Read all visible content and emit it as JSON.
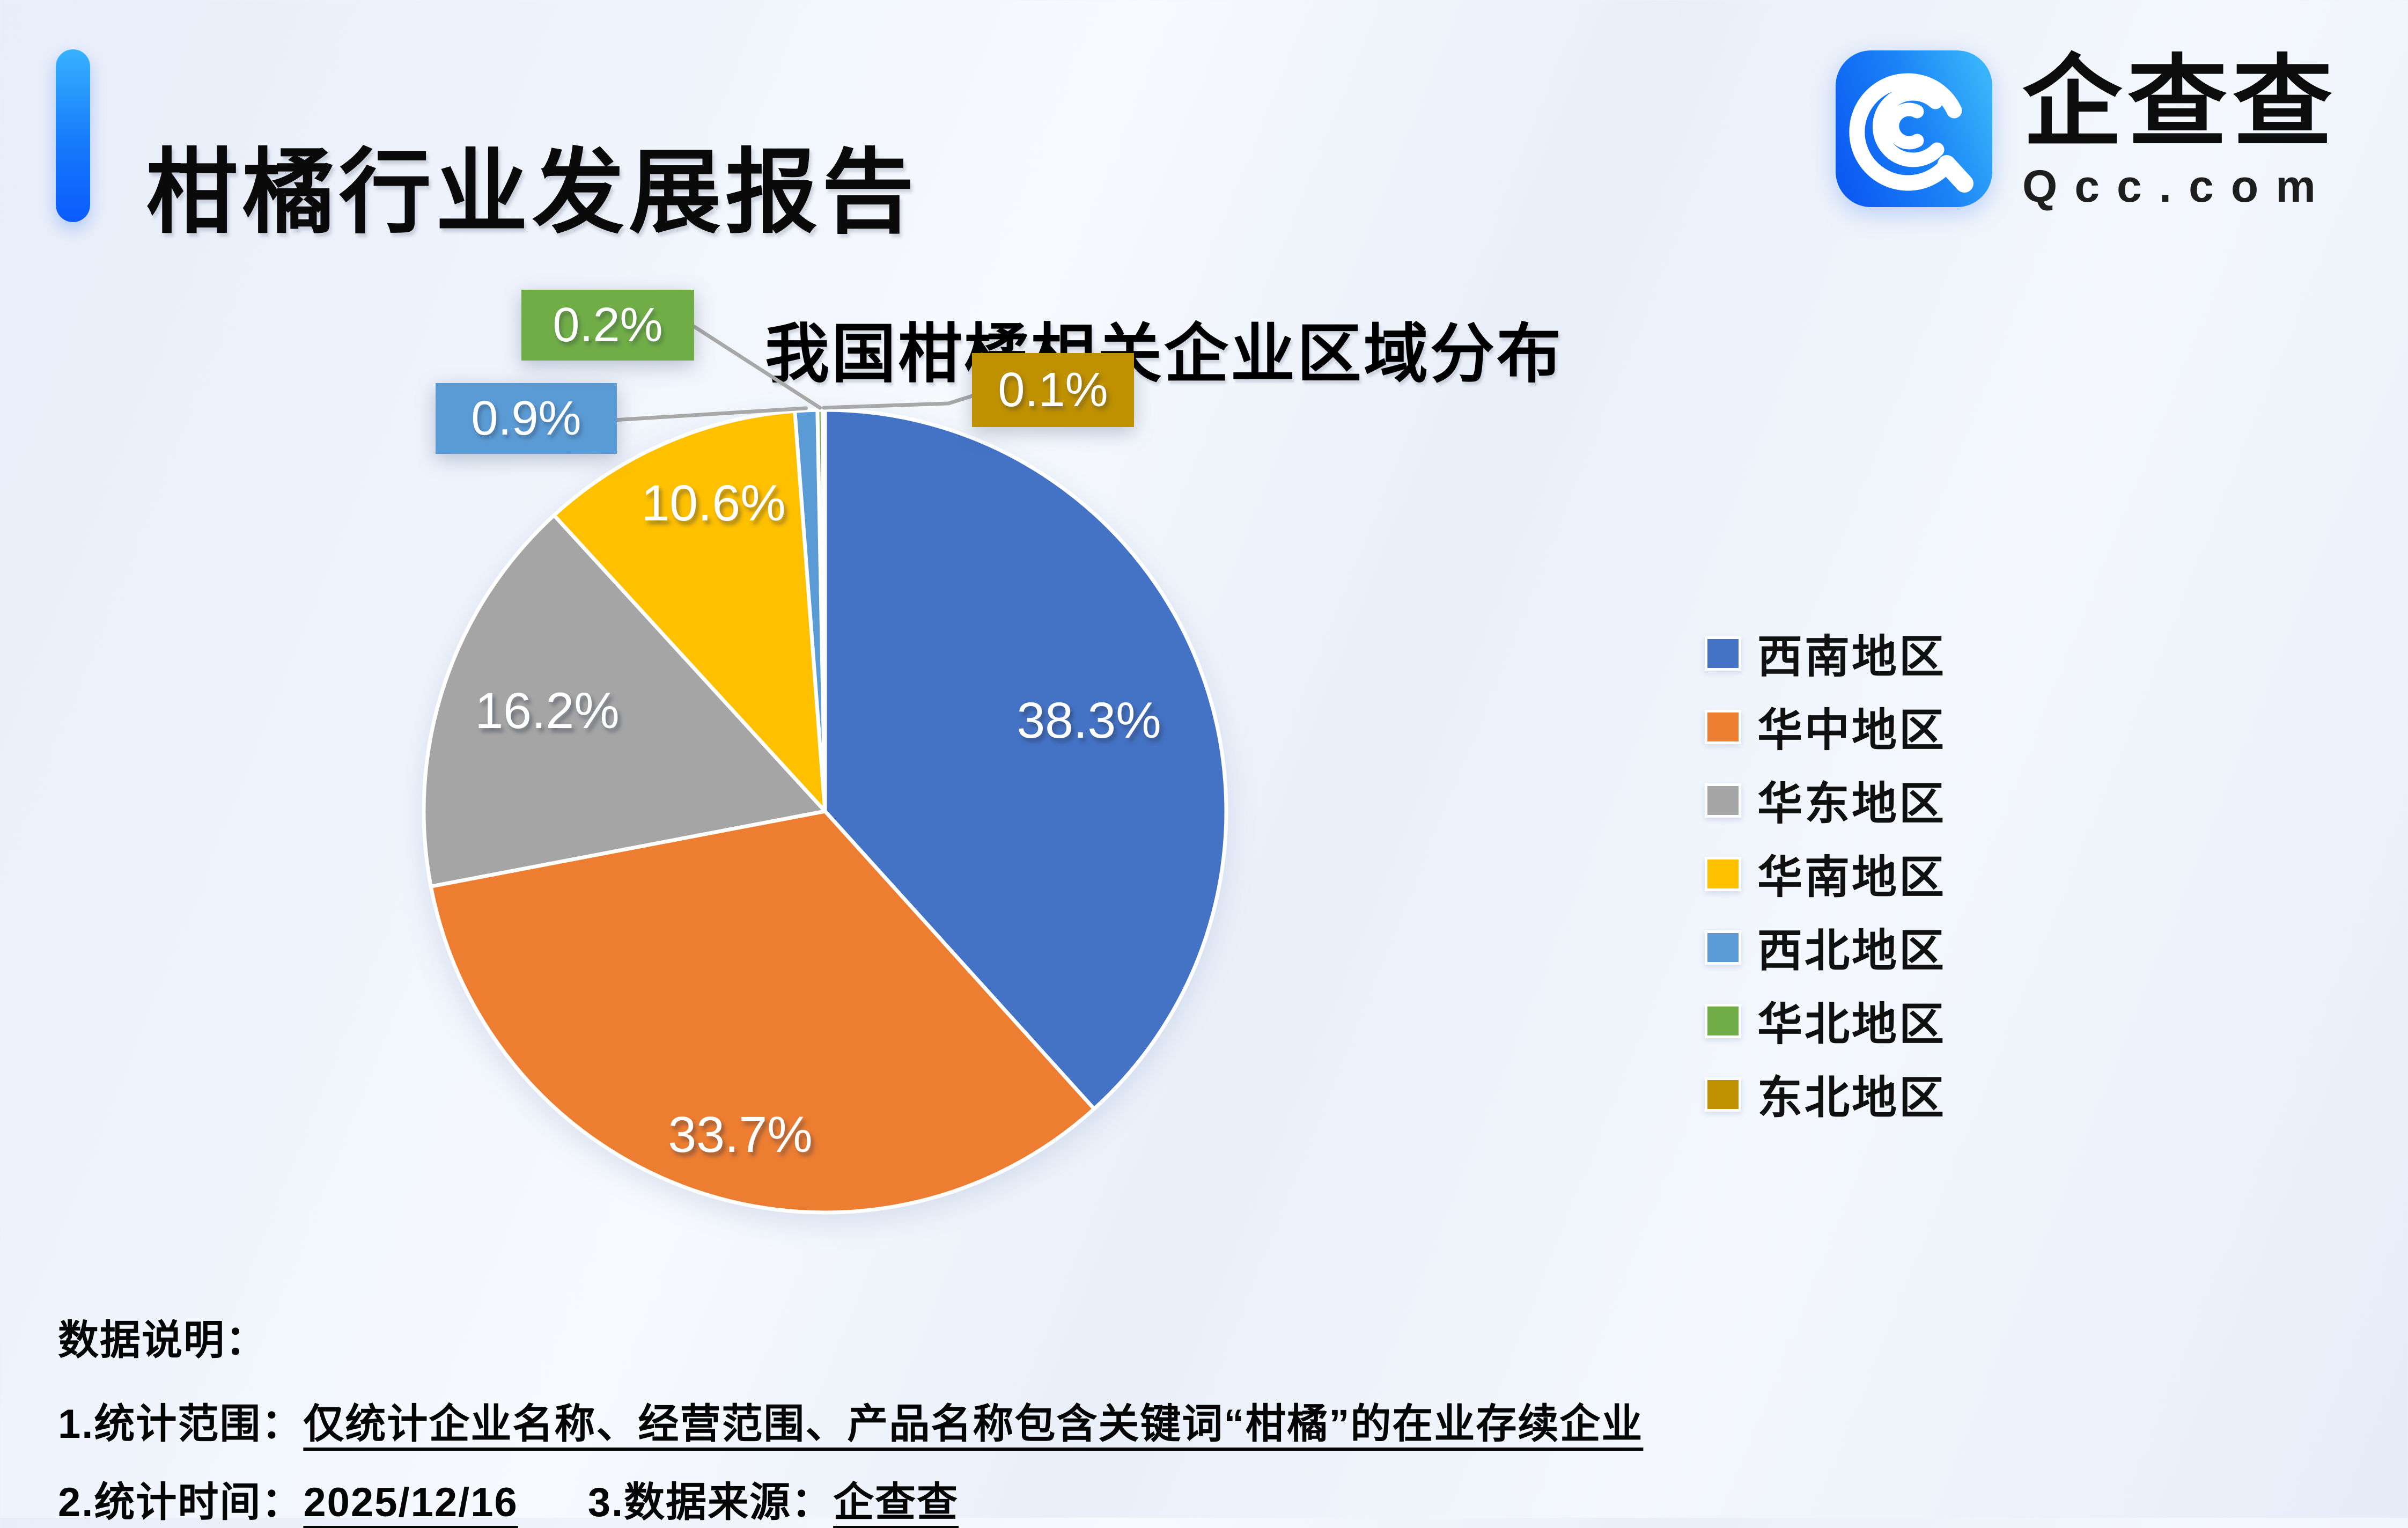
{
  "header": {
    "title": "柑橘行业发展报告"
  },
  "logo": {
    "name": "企查查",
    "domain": "Qcc.com",
    "brand_color": "#1473F6"
  },
  "chart_data": {
    "type": "pie",
    "title": "我国柑橘相关企业区域分布",
    "categories": [
      "西南地区",
      "华中地区",
      "华东地区",
      "华南地区",
      "西北地区",
      "华北地区",
      "东北地区"
    ],
    "values": [
      38.3,
      33.7,
      16.2,
      10.6,
      0.9,
      0.2,
      0.1
    ],
    "labels": [
      "38.3%",
      "33.7%",
      "16.2%",
      "10.6%",
      "0.9%",
      "0.2%",
      "0.1%"
    ],
    "unit": "%",
    "colors": [
      "#4472C4",
      "#ED7D31",
      "#A5A5A5",
      "#FFC000",
      "#5B9BD5",
      "#70AD47",
      "#BF9000"
    ],
    "legend_position": "right",
    "start_angle": "top",
    "direction": "clockwise",
    "leader_line_color": "#A8A8A8"
  },
  "notes": {
    "heading": "数据说明：",
    "items": [
      {
        "label": "1.统计范围：",
        "value": "仅统计企业名称、经营范围、产品名称包含关键词“柑橘”的在业存续企业"
      },
      {
        "label": "2.统计时间：",
        "value": "2025/12/16"
      },
      {
        "label": "3.数据来源：",
        "value": "企查查"
      }
    ]
  }
}
